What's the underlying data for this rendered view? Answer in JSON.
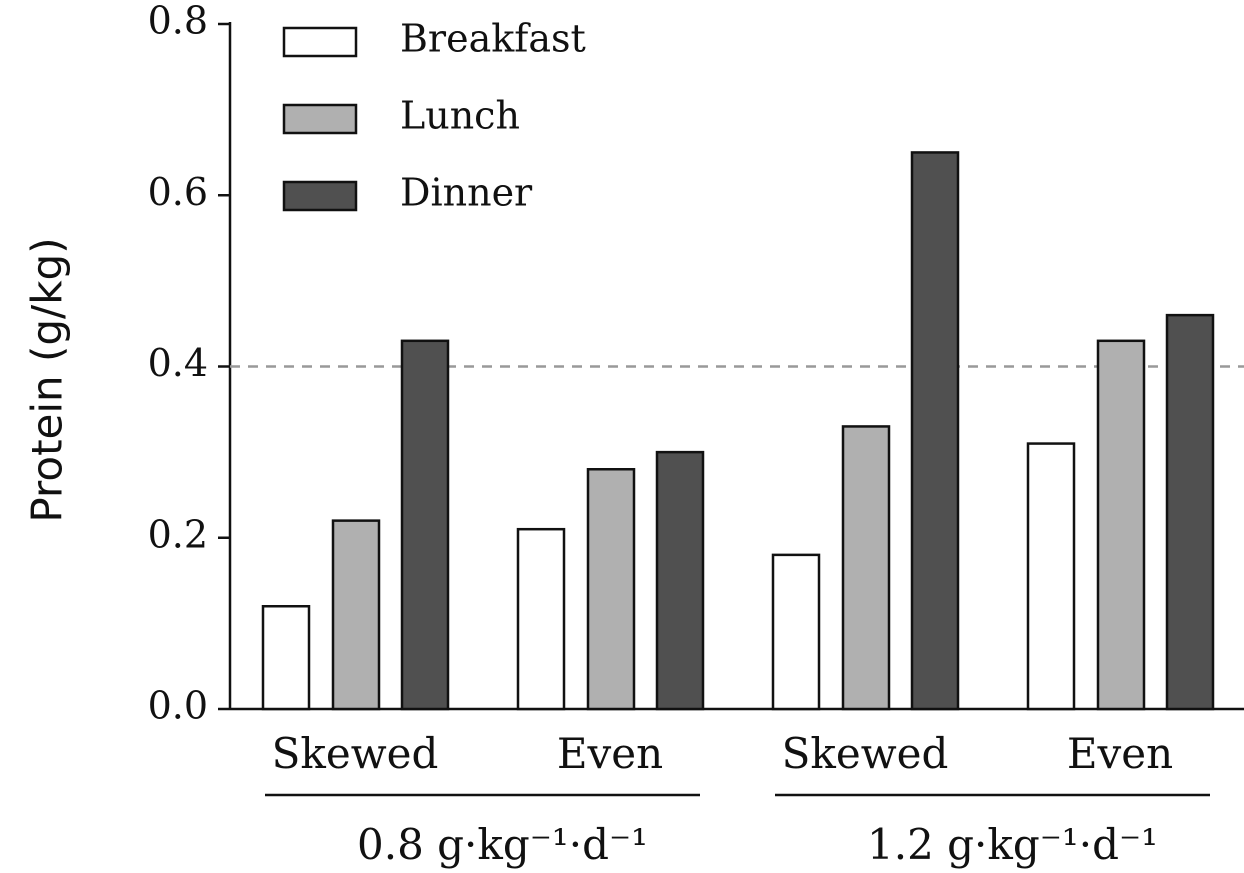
{
  "chart_data": {
    "type": "bar",
    "ylabel": "Protein (g/kg)",
    "groups": [
      {
        "name": "0.8 g·kg⁻¹·d⁻¹",
        "categories": [
          "Skewed",
          "Even"
        ]
      },
      {
        "name": "1.2 g·kg⁻¹·d⁻¹",
        "categories": [
          "Skewed",
          "Even"
        ]
      }
    ],
    "series": [
      {
        "name": "Breakfast",
        "color": "#ffffff",
        "values": [
          0.12,
          0.21,
          0.18,
          0.31
        ]
      },
      {
        "name": "Lunch",
        "color": "#b0b0b0",
        "values": [
          0.22,
          0.28,
          0.33,
          0.43
        ]
      },
      {
        "name": "Dinner",
        "color": "#505050",
        "values": [
          0.43,
          0.3,
          0.65,
          0.46
        ]
      }
    ],
    "ylim": [
      0,
      0.8
    ],
    "yticks": [
      {
        "value": 0,
        "label": "0.0"
      },
      0.2,
      0.4,
      0.6,
      0.8
    ],
    "reference_line": 0.4,
    "legend": "upper-left"
  }
}
